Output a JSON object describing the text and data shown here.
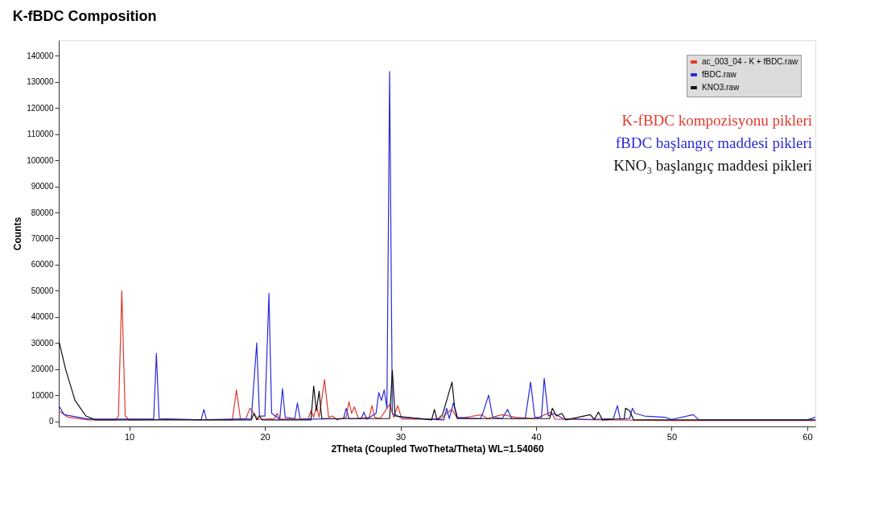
{
  "chart_data": {
    "type": "line",
    "title": "K-fBDC Composition",
    "xlabel": "2Theta (Coupled TwoTheta/Theta) WL=1.54060",
    "ylabel": "Counts",
    "xlim": [
      4.8,
      60.6
    ],
    "xticks": [
      10,
      20,
      30,
      40,
      50,
      60
    ],
    "ylim": [
      -2000,
      146000
    ],
    "yticks": [
      0,
      10000,
      20000,
      30000,
      40000,
      50000,
      60000,
      70000,
      80000,
      90000,
      100000,
      110000,
      120000,
      130000,
      140000
    ],
    "grid": false,
    "legend": "top right",
    "marker": "none",
    "line_style": "solid",
    "annotations": [
      "K-fBDC kompozisyonu pikleri",
      "fBDC başlangıç maddesi pikleri",
      "KNO₃ başlangıç maddesi pikleri"
    ],
    "series": [
      {
        "name": "ac_003_04 - K + fBDC.raw",
        "color": "#e03a2e",
        "x": [
          4.8,
          5.5,
          7,
          9,
          9.2,
          9.45,
          9.7,
          10,
          13,
          17.6,
          17.9,
          18.2,
          18.6,
          18.9,
          19.2,
          19.5,
          20.7,
          20.9,
          21.1,
          22.5,
          23.2,
          23.4,
          23.6,
          23.8,
          24.0,
          24.4,
          24.7,
          25.0,
          25.3,
          26.0,
          26.2,
          26.4,
          26.6,
          26.9,
          27.7,
          27.9,
          28.1,
          28.5,
          29.2,
          29.5,
          29.8,
          30.1,
          32,
          33,
          33.5,
          33.8,
          34.2,
          36,
          36.4,
          37.5,
          38.5,
          40,
          41.1,
          41.4,
          45,
          50,
          60.6
        ],
        "values": [
          4000,
          1500,
          500,
          500,
          2000,
          50000,
          2000,
          500,
          700,
          500,
          12000,
          800,
          1000,
          5000,
          3000,
          700,
          1000,
          3000,
          800,
          800,
          1000,
          4000,
          1500,
          6000,
          1500,
          16000,
          1500,
          2000,
          500,
          1500,
          7500,
          3000,
          5500,
          1000,
          1500,
          6000,
          1500,
          1000,
          6500,
          1500,
          6000,
          800,
          800,
          1000,
          3500,
          4500,
          1000,
          2500,
          1000,
          2500,
          1500,
          1000,
          3500,
          800,
          500,
          300,
          300
        ]
      },
      {
        "name": "fBDC.raw",
        "color": "#2a2ad8",
        "x": [
          4.8,
          5.2,
          7,
          11.8,
          12.0,
          12.2,
          15.3,
          15.5,
          15.7,
          19.0,
          19.4,
          19.6,
          20.0,
          20.3,
          20.5,
          21.1,
          21.3,
          21.5,
          22.2,
          22.4,
          22.6,
          23.5,
          25.8,
          26.0,
          26.2,
          27.1,
          27.3,
          27.5,
          28.2,
          28.4,
          28.6,
          28.8,
          29.0,
          29.2,
          29.4,
          30,
          32,
          33.2,
          33.4,
          33.6,
          33.9,
          34.2,
          35,
          35.9,
          36.1,
          36.5,
          36.8,
          37.5,
          37.9,
          38.2,
          39.2,
          39.6,
          39.9,
          40.4,
          40.6,
          40.9,
          41.3,
          42,
          44,
          45.7,
          46.0,
          46.2,
          46.9,
          47.1,
          47.3,
          48,
          49.5,
          50,
          51.6,
          52,
          60,
          60.6
        ],
        "values": [
          6000,
          2500,
          800,
          800,
          26000,
          1000,
          500,
          4500,
          600,
          1000,
          30000,
          2000,
          2000,
          49000,
          3000,
          800,
          12500,
          1500,
          1000,
          7000,
          1000,
          800,
          1000,
          5000,
          1000,
          1000,
          3500,
          800,
          3000,
          11000,
          8000,
          12000,
          5000,
          134000,
          3000,
          1500,
          800,
          500,
          5000,
          1000,
          7000,
          1500,
          1200,
          1000,
          3500,
          10000,
          1500,
          1000,
          4500,
          1000,
          1000,
          15000,
          1500,
          1500,
          16500,
          2000,
          3000,
          1000,
          700,
          1000,
          6000,
          800,
          1000,
          5000,
          3000,
          2000,
          1500,
          700,
          2500,
          500,
          500,
          1500
        ]
      },
      {
        "name": "KNO3.raw",
        "color": "#111111",
        "x": [
          4.8,
          5.3,
          6,
          6.8,
          7.5,
          19.0,
          19.2,
          19.4,
          19.6,
          19.8,
          23.4,
          23.6,
          23.8,
          24.0,
          24.2,
          29.2,
          29.4,
          29.6,
          32.3,
          32.5,
          32.7,
          33.1,
          33.8,
          34.0,
          34.2,
          41.0,
          41.2,
          41.5,
          41.9,
          42.2,
          44.0,
          44.3,
          44.6,
          44.9,
          46.5,
          46.6,
          46.9,
          47.2,
          60.6
        ],
        "values": [
          31000,
          20000,
          8000,
          2000,
          500,
          500,
          3000,
          500,
          2000,
          500,
          500,
          13500,
          4000,
          11500,
          1000,
          1000,
          19500,
          2000,
          500,
          4500,
          500,
          2500,
          15000,
          5000,
          1000,
          1000,
          5000,
          2000,
          3000,
          500,
          2500,
          700,
          3500,
          500,
          1000,
          5000,
          4000,
          500,
          500
        ]
      }
    ]
  }
}
